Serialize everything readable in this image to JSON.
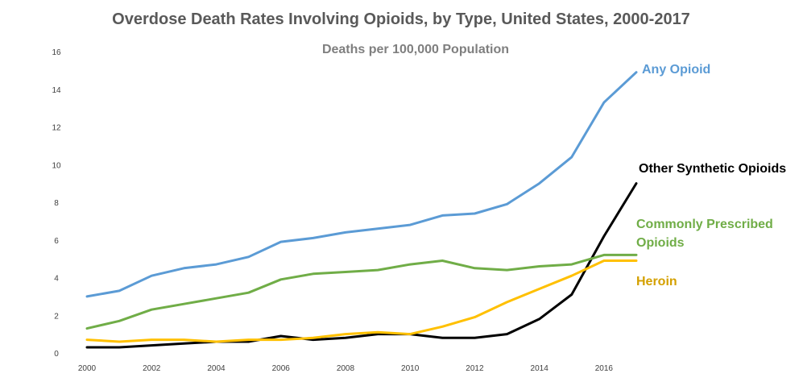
{
  "chart_data": {
    "type": "line",
    "title": "Overdose Death Rates Involving Opioids, by Type, United States, 2000-2017",
    "subtitle": "Deaths per 100,000 Population",
    "xlabel": "",
    "ylabel": "",
    "x": [
      2000,
      2001,
      2002,
      2003,
      2004,
      2005,
      2006,
      2007,
      2008,
      2009,
      2010,
      2011,
      2012,
      2013,
      2014,
      2015,
      2016,
      2017
    ],
    "x_ticks": [
      "2000",
      "2002",
      "2004",
      "2006",
      "2008",
      "2010",
      "2012",
      "2014",
      "2016"
    ],
    "x_tick_values": [
      2000,
      2002,
      2004,
      2006,
      2008,
      2010,
      2012,
      2014,
      2016
    ],
    "y_ticks": [
      "0",
      "2",
      "4",
      "6",
      "8",
      "10",
      "12",
      "14",
      "16"
    ],
    "y_tick_values": [
      0,
      2,
      4,
      6,
      8,
      10,
      12,
      14,
      16
    ],
    "xlim": [
      2000,
      2017
    ],
    "ylim": [
      0,
      16
    ],
    "grid": false,
    "legend": "direct labels at right",
    "series": [
      {
        "name": "Any Opioid",
        "label_lines": [
          "Any Opioid"
        ],
        "color": "#5b9bd5",
        "values": [
          3.0,
          3.3,
          4.1,
          4.5,
          4.7,
          5.1,
          5.9,
          6.1,
          6.4,
          6.6,
          6.8,
          7.3,
          7.4,
          7.9,
          9.0,
          10.4,
          13.3,
          14.9
        ]
      },
      {
        "name": "Other Synthetic Opioids",
        "label_lines": [
          "Other Synthetic Opioids"
        ],
        "color": "#000000",
        "values": [
          0.3,
          0.3,
          0.4,
          0.5,
          0.6,
          0.6,
          0.9,
          0.7,
          0.8,
          1.0,
          1.0,
          0.8,
          0.8,
          1.0,
          1.8,
          3.1,
          6.2,
          9.0
        ]
      },
      {
        "name": "Commonly Prescribed Opioids",
        "label_lines": [
          "Commonly Prescribed",
          "Opioids"
        ],
        "color": "#70ad47",
        "values": [
          1.3,
          1.7,
          2.3,
          2.6,
          2.9,
          3.2,
          3.9,
          4.2,
          4.3,
          4.4,
          4.7,
          4.9,
          4.5,
          4.4,
          4.6,
          4.7,
          5.2,
          5.2
        ]
      },
      {
        "name": "Heroin",
        "label_lines": [
          "Heroin"
        ],
        "color": "#ffc000",
        "label_color": "#d4a000",
        "values": [
          0.7,
          0.6,
          0.7,
          0.7,
          0.6,
          0.7,
          0.7,
          0.8,
          1.0,
          1.1,
          1.0,
          1.4,
          1.9,
          2.7,
          3.4,
          4.1,
          4.9,
          4.9
        ]
      }
    ]
  }
}
